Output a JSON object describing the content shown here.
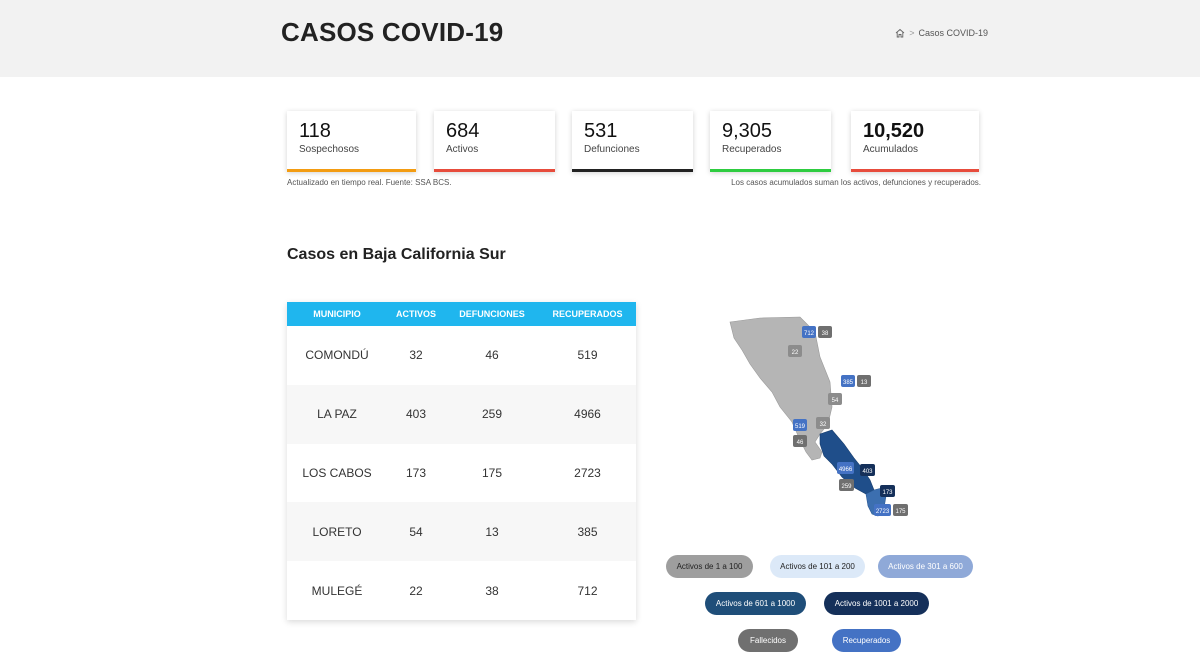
{
  "header": {
    "title": "CASOS COVID-19",
    "breadcrumb": {
      "current": "Casos COVID-19",
      "separator": ">"
    }
  },
  "stats": [
    {
      "value": "118",
      "label": "Sospechosos",
      "color": "#f39c12"
    },
    {
      "value": "684",
      "label": "Activos",
      "color": "#e74c3c"
    },
    {
      "value": "531",
      "label": "Defunciones",
      "color": "#222222"
    },
    {
      "value": "9,305",
      "label": "Recuperados",
      "color": "#2ecc40"
    },
    {
      "value": "10,520",
      "label": "Acumulados",
      "color": "#e74c3c"
    }
  ],
  "notes": {
    "left": "Actualizado en tiempo real. Fuente: SSA BCS.",
    "right": "Los casos acumulados suman los activos, defunciones y recuperados."
  },
  "section": {
    "title": "Casos en Baja California Sur"
  },
  "table": {
    "headers": [
      "MUNICIPIO",
      "ACTIVOS",
      "DEFUNCIONES",
      "RECUPERADOS"
    ],
    "rows": [
      [
        "COMONDÚ",
        "32",
        "46",
        "519"
      ],
      [
        "LA PAZ",
        "403",
        "259",
        "4966"
      ],
      [
        "LOS CABOS",
        "173",
        "175",
        "2723"
      ],
      [
        "LORETO",
        "54",
        "13",
        "385"
      ],
      [
        "MULEGÉ",
        "22",
        "38",
        "712"
      ]
    ]
  },
  "map": {
    "colors": {
      "land": "#b5b5b5",
      "high": "#1f4e8a",
      "mid": "#3c6fb0",
      "recovered": "#4472c4",
      "deaths": "#6f6f6f"
    },
    "badges": {
      "mulege_recovered": "712",
      "mulege_deaths": "38",
      "mulege_active": "22",
      "loreto_recovered": "385",
      "loreto_deaths": "13",
      "loreto_active": "54",
      "comondu_recovered": "519",
      "comondu_deaths": "46",
      "comondu_active": "32",
      "lapaz_recovered": "4966",
      "lapaz_active": "403",
      "lapaz_deaths": "259",
      "loscabos_active": "173",
      "loscabos_recovered": "2723",
      "loscabos_deaths": "175"
    }
  },
  "legend": [
    {
      "label": "Activos de 1 a 100",
      "bg": "#9e9e9e",
      "fg": "#222222"
    },
    {
      "label": "Activos de 101 a 200",
      "bg": "#dce9f8",
      "fg": "#222222"
    },
    {
      "label": "Activos de 301 a 600",
      "bg": "#8fa9d8",
      "fg": "#ffffff"
    },
    {
      "label": "Activos de 601 a 1000",
      "bg": "#1f4e79",
      "fg": "#ffffff"
    },
    {
      "label": "Activos de 1001 a 2000",
      "bg": "#15305a",
      "fg": "#ffffff"
    },
    {
      "label": "Fallecidos",
      "bg": "#707070",
      "fg": "#ffffff"
    },
    {
      "label": "Recuperados",
      "bg": "#4472c4",
      "fg": "#ffffff"
    }
  ]
}
